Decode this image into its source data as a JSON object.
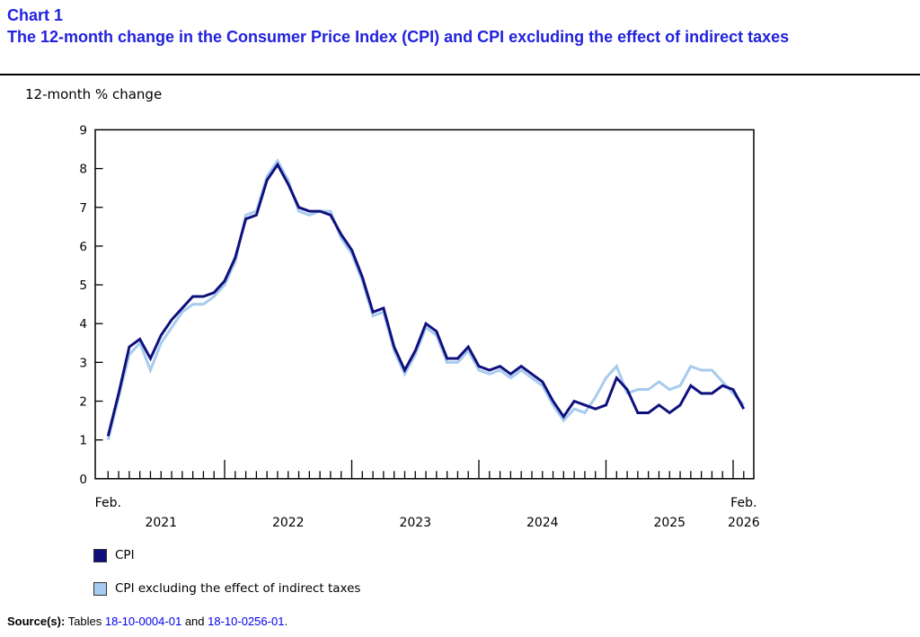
{
  "page": {
    "chart_label": "Chart 1",
    "title": "The 12-month change in the Consumer Price Index (CPI) and CPI excluding the effect of indirect taxes",
    "title_color": "#2222dd",
    "unit_label": "12-month % change"
  },
  "source": {
    "prefix": "Source(s):",
    "text_before": "Tables",
    "link1": "18-10-0004-01",
    "conjunction": "and",
    "link2": "18-10-0256-01",
    "suffix": ".",
    "link_color": "#0000ee"
  },
  "chart_data": {
    "type": "line",
    "title": "The 12-month change in the Consumer Price Index (CPI) and CPI excluding the effect of indirect taxes",
    "ylabel": "12-month % change",
    "ylim": [
      0,
      9
    ],
    "yticks": [
      0,
      1,
      2,
      3,
      4,
      5,
      6,
      7,
      8,
      9
    ],
    "grid": false,
    "legend_position": "bottom-left",
    "x": {
      "frequency": "monthly",
      "start": "Feb 2021",
      "end": "Feb 2026",
      "count": 61,
      "first_point_label": "Feb.",
      "last_point_label_line1": "Feb.",
      "last_point_label_line2": "2026",
      "year_labels": [
        "2021",
        "2022",
        "2023",
        "2024",
        "2025"
      ]
    },
    "series": [
      {
        "name": "CPI",
        "color": "#10107d",
        "values": [
          1.1,
          2.2,
          3.4,
          3.6,
          3.1,
          3.7,
          4.1,
          4.4,
          4.7,
          4.7,
          4.8,
          5.1,
          5.7,
          6.7,
          6.8,
          7.7,
          8.1,
          7.6,
          7.0,
          6.9,
          6.9,
          6.8,
          6.3,
          5.9,
          5.2,
          4.3,
          4.4,
          3.4,
          2.8,
          3.3,
          4.0,
          3.8,
          3.1,
          3.1,
          3.4,
          2.9,
          2.8,
          2.9,
          2.7,
          2.9,
          2.7,
          2.5,
          2.0,
          1.6,
          2.0,
          1.9,
          1.8,
          1.9,
          2.6,
          2.3,
          1.7,
          1.7,
          1.9,
          1.7,
          1.9,
          2.4,
          2.2,
          2.2,
          2.4,
          2.3,
          1.8
        ]
      },
      {
        "name": "CPI excluding the effect of indirect taxes",
        "color": "#a7cbee",
        "values": [
          1.0,
          2.1,
          3.2,
          3.5,
          2.8,
          3.5,
          3.9,
          4.3,
          4.5,
          4.5,
          4.7,
          5.0,
          5.6,
          6.8,
          6.9,
          7.8,
          8.2,
          7.7,
          6.9,
          6.8,
          6.9,
          6.9,
          6.2,
          5.8,
          5.1,
          4.2,
          4.3,
          3.3,
          2.7,
          3.2,
          3.9,
          3.7,
          3.0,
          3.0,
          3.3,
          2.8,
          2.7,
          2.8,
          2.6,
          2.8,
          2.6,
          2.4,
          1.9,
          1.5,
          1.8,
          1.7,
          2.1,
          2.6,
          2.9,
          2.2,
          2.3,
          2.3,
          2.5,
          2.3,
          2.4,
          2.9,
          2.8,
          2.8,
          2.5,
          2.2,
          1.9
        ]
      }
    ]
  }
}
